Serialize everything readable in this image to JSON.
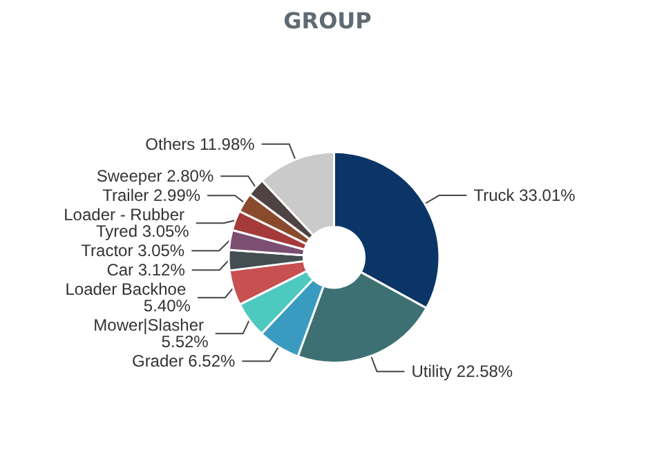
{
  "chart_data": {
    "type": "donut",
    "title": "GROUP",
    "categories": [
      "Truck",
      "Utility",
      "Grader",
      "Mower|Slasher",
      "Loader Backhoe",
      "Car",
      "Tractor",
      "Loader - Rubber Tyred",
      "Trailer",
      "Sweeper",
      "Others"
    ],
    "values": [
      33.01,
      22.58,
      6.52,
      5.52,
      5.4,
      3.12,
      3.05,
      3.05,
      2.99,
      2.8,
      11.98
    ],
    "value_labels": [
      "33.01%",
      "22.58%",
      "6.52%",
      "5.52%",
      "5.40%",
      "3.12%",
      "3.05%",
      "3.05%",
      "2.99%",
      "2.80%",
      "11.98%"
    ],
    "colors": [
      "#0b3566",
      "#3d7072",
      "#3a9bc1",
      "#4ec9c0",
      "#c85050",
      "#434d52",
      "#7c4f72",
      "#a53a3a",
      "#8a4b2d",
      "#4f4242",
      "#cacaca"
    ],
    "legend": false
  }
}
